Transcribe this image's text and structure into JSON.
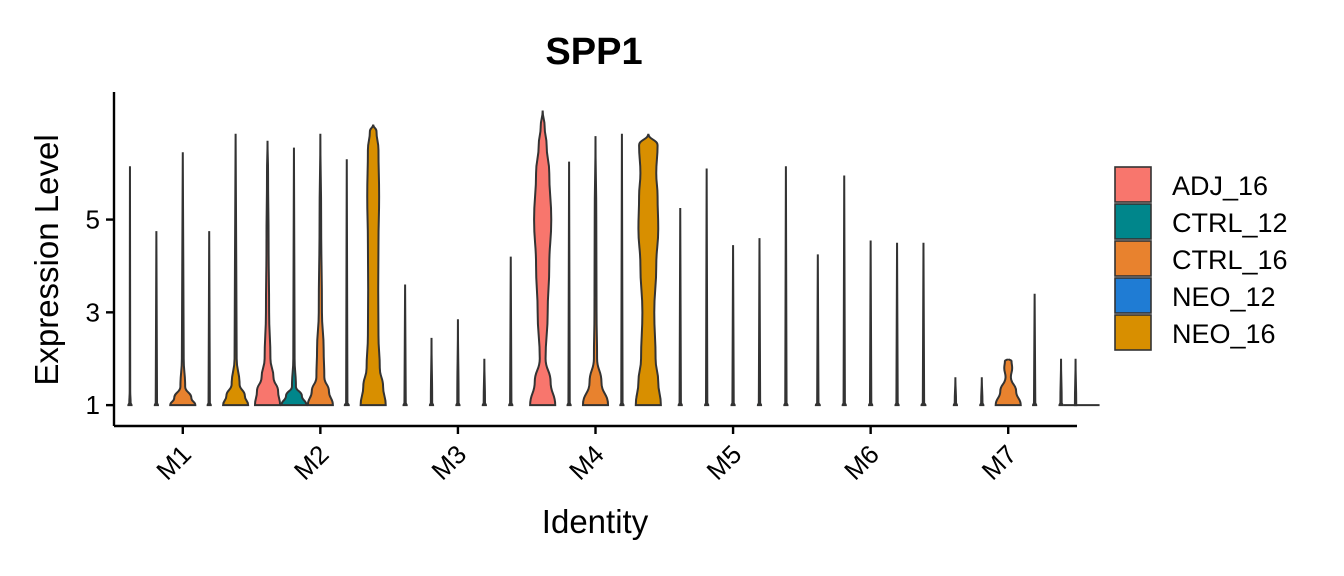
{
  "chart_data": {
    "type": "violin",
    "title": "SPP1",
    "xlabel": "Identity",
    "ylabel": "Expression Level",
    "y_ticks": [
      1,
      3,
      5
    ],
    "ylim": [
      0.55,
      7.75
    ],
    "grid": false,
    "legend_position": "right",
    "categories": [
      "M1",
      "M2",
      "M3",
      "M4",
      "M5",
      "M6",
      "M7"
    ],
    "series": [
      {
        "name": "ADJ_16",
        "color": "#F8766D",
        "violins": [
          {
            "max": 6.15,
            "widths": [
              [
                1.0,
                0.12
              ],
              [
                1.05,
                0.05
              ],
              [
                1.3,
                0.02
              ]
            ]
          },
          {
            "max": 6.7,
            "widths": [
              [
                1.0,
                0.95
              ],
              [
                1.3,
                0.8
              ],
              [
                1.6,
                0.45
              ],
              [
                2.0,
                0.22
              ],
              [
                3.0,
                0.12
              ],
              [
                4.5,
                0.08
              ],
              [
                6.0,
                0.04
              ]
            ]
          },
          {
            "max": 3.6,
            "widths": [
              [
                1.0,
                0.12
              ],
              [
                1.05,
                0.05
              ]
            ]
          },
          {
            "max": 7.35,
            "widths": [
              [
                1.0,
                0.95
              ],
              [
                1.5,
                0.6
              ],
              [
                2.0,
                0.22
              ],
              [
                3.0,
                0.38
              ],
              [
                4.0,
                0.5
              ],
              [
                5.0,
                0.65
              ],
              [
                6.0,
                0.5
              ],
              [
                6.6,
                0.3
              ],
              [
                7.0,
                0.15
              ]
            ]
          },
          {
            "max": 5.25,
            "widths": [
              [
                1.0,
                0.12
              ],
              [
                1.05,
                0.05
              ]
            ]
          },
          {
            "max": 4.25,
            "widths": [
              [
                1.0,
                0.15
              ],
              [
                1.05,
                0.05
              ]
            ]
          },
          {
            "max": 1.6,
            "widths": [
              [
                1.0,
                0.12
              ],
              [
                1.05,
                0.05
              ]
            ]
          }
        ]
      },
      {
        "name": "CTRL_12",
        "color": "#00868B",
        "violins": [
          {
            "max": 4.75,
            "widths": [
              [
                1.0,
                0.12
              ],
              [
                1.05,
                0.05
              ]
            ]
          },
          {
            "max": 6.55,
            "widths": [
              [
                1.0,
                0.95
              ],
              [
                1.2,
                0.6
              ],
              [
                1.4,
                0.15
              ],
              [
                2.0,
                0.05
              ],
              [
                4.0,
                0.03
              ]
            ]
          },
          {
            "max": 2.45,
            "widths": [
              [
                1.0,
                0.12
              ],
              [
                1.05,
                0.05
              ]
            ]
          },
          {
            "max": 6.25,
            "widths": [
              [
                1.0,
                0.12
              ],
              [
                1.05,
                0.05
              ]
            ]
          },
          {
            "max": 6.1,
            "widths": [
              [
                1.0,
                0.12
              ],
              [
                1.05,
                0.05
              ]
            ]
          },
          {
            "max": 5.95,
            "widths": [
              [
                1.0,
                0.12
              ],
              [
                1.05,
                0.05
              ]
            ]
          },
          {
            "max": 1.6,
            "widths": [
              [
                1.0,
                0.12
              ],
              [
                1.05,
                0.05
              ]
            ]
          }
        ]
      },
      {
        "name": "CTRL_16",
        "color": "#E8822E",
        "violins": [
          {
            "max": 6.45,
            "widths": [
              [
                1.0,
                0.95
              ],
              [
                1.15,
                0.65
              ],
              [
                1.4,
                0.18
              ],
              [
                2.0,
                0.07
              ],
              [
                4.0,
                0.04
              ]
            ]
          },
          {
            "max": 6.85,
            "widths": [
              [
                1.0,
                0.95
              ],
              [
                1.3,
                0.65
              ],
              [
                1.6,
                0.3
              ],
              [
                2.2,
                0.25
              ],
              [
                3.0,
                0.12
              ],
              [
                5.0,
                0.06
              ]
            ]
          },
          {
            "max": 2.85,
            "widths": [
              [
                1.0,
                0.12
              ],
              [
                1.05,
                0.05
              ]
            ]
          },
          {
            "max": 6.8,
            "widths": [
              [
                1.0,
                0.95
              ],
              [
                1.5,
                0.45
              ],
              [
                2.0,
                0.12
              ],
              [
                3.0,
                0.08
              ],
              [
                5.0,
                0.06
              ]
            ]
          },
          {
            "max": 4.45,
            "widths": [
              [
                1.0,
                0.12
              ],
              [
                1.05,
                0.05
              ]
            ]
          },
          {
            "max": 4.55,
            "widths": [
              [
                1.0,
                0.12
              ],
              [
                1.05,
                0.05
              ]
            ]
          },
          {
            "max": 2.0,
            "widths": [
              [
                1.0,
                0.95
              ],
              [
                1.3,
                0.6
              ],
              [
                1.6,
                0.2
              ],
              [
                1.8,
                0.3
              ],
              [
                1.95,
                0.25
              ]
            ]
          }
        ]
      },
      {
        "name": "NEO_12",
        "color": "#1F7CD4",
        "violins": [
          {
            "max": 4.75,
            "widths": [
              [
                1.0,
                0.12
              ],
              [
                1.05,
                0.05
              ]
            ]
          },
          {
            "max": 6.3,
            "widths": [
              [
                1.0,
                0.15
              ],
              [
                1.05,
                0.05
              ]
            ]
          },
          {
            "max": 2.0,
            "widths": [
              [
                1.0,
                0.12
              ],
              [
                1.05,
                0.05
              ]
            ]
          },
          {
            "max": 6.85,
            "widths": [
              [
                1.0,
                0.12
              ],
              [
                1.05,
                0.05
              ]
            ]
          },
          {
            "max": 4.6,
            "widths": [
              [
                1.0,
                0.12
              ],
              [
                1.05,
                0.05
              ]
            ]
          },
          {
            "max": 4.5,
            "widths": [
              [
                1.0,
                0.12
              ],
              [
                1.05,
                0.05
              ]
            ]
          },
          {
            "max": 3.4,
            "widths": [
              [
                1.0,
                0.12
              ],
              [
                1.05,
                0.05
              ]
            ]
          }
        ]
      },
      {
        "name": "NEO_16",
        "color": "#D88F00",
        "violins": [
          {
            "max": 6.85,
            "widths": [
              [
                1.0,
                0.95
              ],
              [
                1.2,
                0.7
              ],
              [
                1.45,
                0.3
              ],
              [
                2.0,
                0.08
              ],
              [
                4.0,
                0.05
              ]
            ]
          },
          {
            "max": 7.05,
            "widths": [
              [
                1.0,
                0.95
              ],
              [
                1.4,
                0.75
              ],
              [
                1.8,
                0.5
              ],
              [
                2.5,
                0.4
              ],
              [
                3.5,
                0.38
              ],
              [
                4.5,
                0.4
              ],
              [
                5.5,
                0.45
              ],
              [
                6.5,
                0.4
              ],
              [
                6.9,
                0.25
              ]
            ]
          },
          {
            "max": 4.2,
            "widths": [
              [
                1.0,
                0.12
              ],
              [
                1.05,
                0.05
              ]
            ]
          },
          {
            "max": 6.85,
            "widths": [
              [
                1.0,
                0.95
              ],
              [
                1.5,
                0.75
              ],
              [
                2.0,
                0.55
              ],
              [
                3.0,
                0.45
              ],
              [
                4.0,
                0.6
              ],
              [
                4.8,
                0.75
              ],
              [
                5.5,
                0.7
              ],
              [
                6.0,
                0.6
              ],
              [
                6.6,
                0.7
              ],
              [
                6.85,
                0.75
              ]
            ]
          },
          {
            "max": 6.15,
            "widths": [
              [
                1.0,
                0.12
              ],
              [
                1.05,
                0.05
              ]
            ]
          },
          {
            "max": 4.5,
            "widths": [
              [
                1.0,
                0.15
              ],
              [
                1.05,
                0.05
              ]
            ]
          },
          {
            "max": 2.0,
            "widths": [
              [
                1.0,
                0.12
              ],
              [
                1.05,
                0.05
              ]
            ]
          }
        ]
      }
    ],
    "extra_m7_lines": [
      {
        "max": 2.0,
        "widths": [
          [
            1.0,
            0.05
          ],
          [
            2.0,
            0.03
          ]
        ]
      }
    ]
  }
}
